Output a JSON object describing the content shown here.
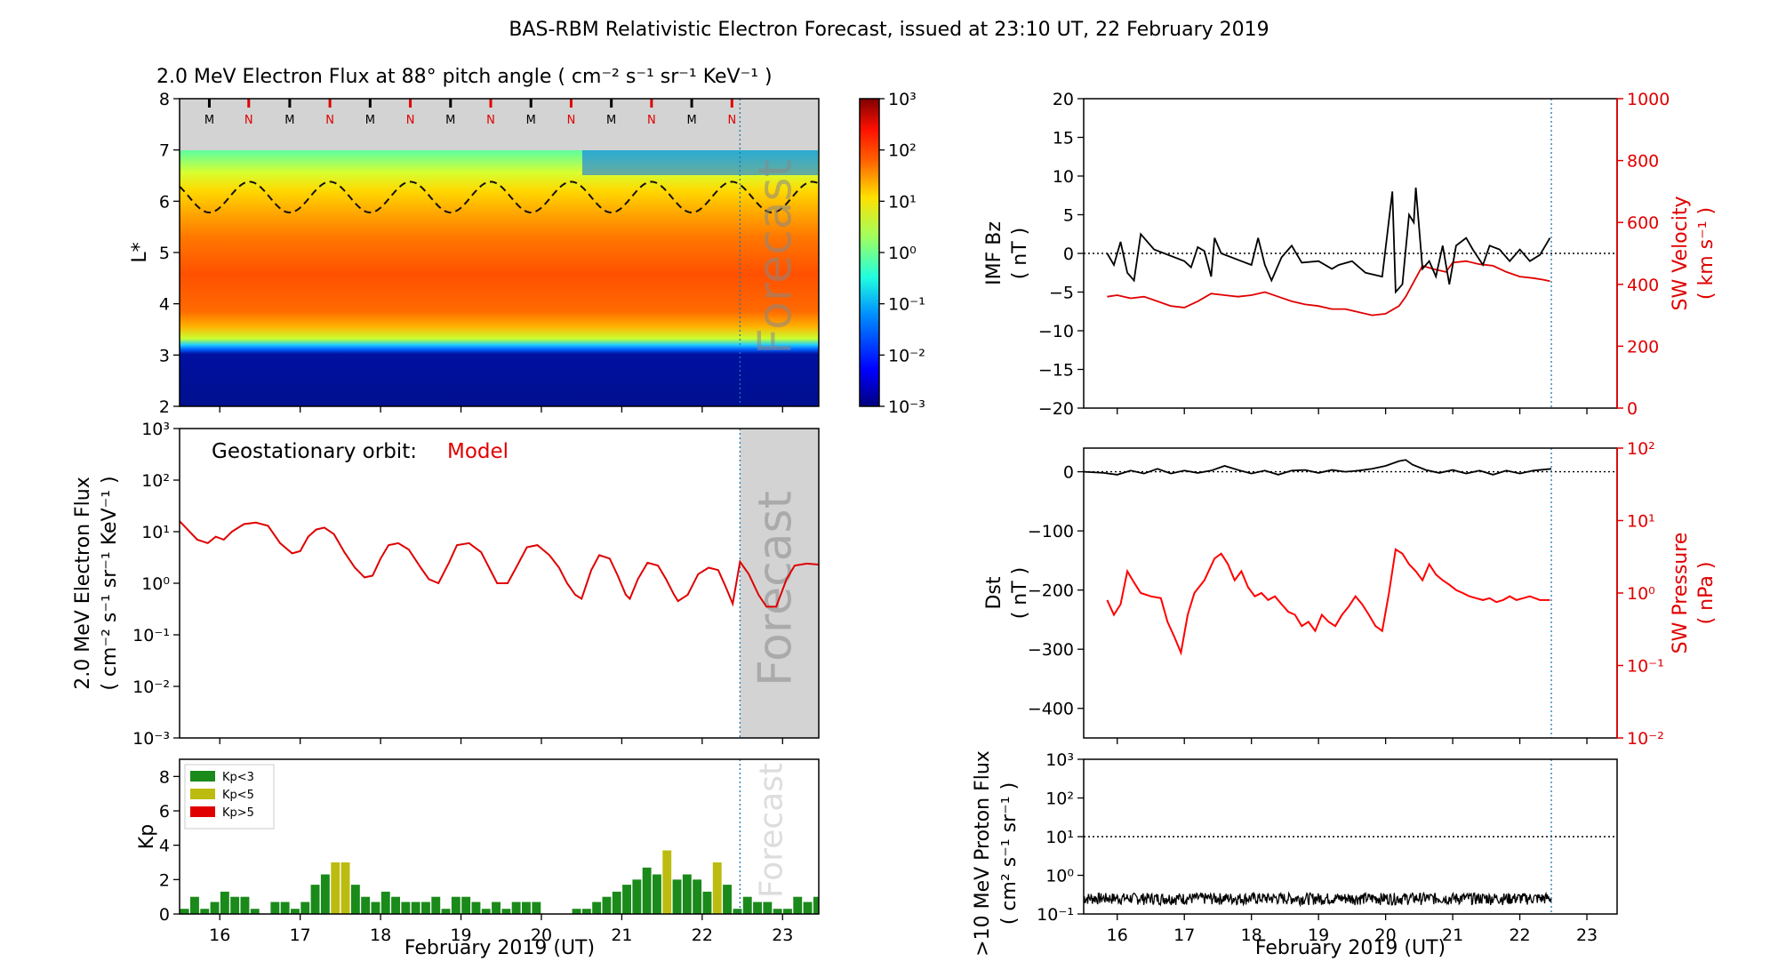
{
  "title": "BAS-RBM Relativistic Electron Forecast, issued at 23:10 UT, 22 February 2019",
  "xlabel": "February 2019 (UT)",
  "x_ticks": [
    "16",
    "17",
    "18",
    "19",
    "20",
    "21",
    "22",
    "23"
  ],
  "forecast_label": "Forecast",
  "colors": {
    "model": "#e00000",
    "bz": "#000000",
    "kp_low": "#1a8a1a",
    "kp_mid": "#bcbc10",
    "kp_high": "#e00000",
    "forecast_line": "#1f77b4",
    "forecast_shade": "#d3d3d3"
  },
  "chart_data": [
    {
      "id": "flux_map",
      "type": "heatmap",
      "title": "2.0 MeV Electron Flux at 88° pitch angle ( cm⁻² s⁻¹ sr⁻¹ KeV⁻¹ )",
      "ylabel": "L*",
      "xlim": [
        15.5,
        23.45
      ],
      "ylim": [
        2,
        8
      ],
      "y_ticks": [
        "2",
        "3",
        "4",
        "5",
        "6",
        "7",
        "8"
      ],
      "forecast_start": 22.47,
      "colorbar": {
        "min_exp": -3,
        "max_exp": 3,
        "tick_labels": [
          "10⁻³",
          "10⁻²",
          "10⁻¹",
          "10⁰",
          "10¹",
          "10²",
          "10³"
        ]
      },
      "magnetopause_markers": [
        {
          "x": 15.87,
          "label": "M"
        },
        {
          "x": 16.36,
          "label": "N"
        },
        {
          "x": 16.87,
          "label": "M"
        },
        {
          "x": 17.37,
          "label": "N"
        },
        {
          "x": 17.87,
          "label": "M"
        },
        {
          "x": 18.37,
          "label": "N"
        },
        {
          "x": 18.87,
          "label": "M"
        },
        {
          "x": 19.37,
          "label": "N"
        },
        {
          "x": 19.87,
          "label": "M"
        },
        {
          "x": 20.37,
          "label": "N"
        },
        {
          "x": 20.87,
          "label": "M"
        },
        {
          "x": 21.37,
          "label": "N"
        },
        {
          "x": 21.87,
          "label": "M"
        },
        {
          "x": 22.37,
          "label": "N"
        }
      ],
      "dashed_contour": {
        "mean_L": 6.08,
        "amplitude": 0.3,
        "period_days": 1.0,
        "peak_day": 16.37
      }
    },
    {
      "id": "geo_flux",
      "type": "line",
      "annotation": "Geostationary orbit:",
      "series_label": "Model",
      "ylabel": [
        "2.0 MeV Electron Flux",
        "( cm⁻² s⁻¹ sr⁻¹ KeV⁻¹ )"
      ],
      "xlim": [
        15.5,
        23.45
      ],
      "yscale": "log",
      "ylim_exp": [
        -3,
        3
      ],
      "y_ticks": [
        "10⁻³",
        "10⁻²",
        "10⁻¹",
        "10⁰",
        "10¹",
        "10²",
        "10³"
      ],
      "forecast_start": 22.47,
      "points": [
        [
          15.5,
          16
        ],
        [
          15.6,
          11
        ],
        [
          15.72,
          7
        ],
        [
          15.85,
          6
        ],
        [
          15.95,
          8
        ],
        [
          16.05,
          7
        ],
        [
          16.15,
          10
        ],
        [
          16.3,
          14
        ],
        [
          16.45,
          15
        ],
        [
          16.6,
          13
        ],
        [
          16.75,
          6
        ],
        [
          16.9,
          3.8
        ],
        [
          17.0,
          4.2
        ],
        [
          17.1,
          8
        ],
        [
          17.2,
          11
        ],
        [
          17.3,
          12
        ],
        [
          17.42,
          9
        ],
        [
          17.55,
          4
        ],
        [
          17.68,
          2.0
        ],
        [
          17.8,
          1.3
        ],
        [
          17.9,
          1.4
        ],
        [
          18.0,
          3
        ],
        [
          18.1,
          5.5
        ],
        [
          18.22,
          6
        ],
        [
          18.35,
          4.5
        ],
        [
          18.5,
          2.0
        ],
        [
          18.6,
          1.2
        ],
        [
          18.72,
          1.0
        ],
        [
          18.85,
          2.5
        ],
        [
          18.95,
          5.5
        ],
        [
          19.1,
          6
        ],
        [
          19.25,
          4.0
        ],
        [
          19.35,
          2.0
        ],
        [
          19.45,
          1.0
        ],
        [
          19.58,
          1.0
        ],
        [
          19.7,
          2.2
        ],
        [
          19.82,
          5
        ],
        [
          19.95,
          5.5
        ],
        [
          20.1,
          3.5
        ],
        [
          20.22,
          2.0
        ],
        [
          20.32,
          1.0
        ],
        [
          20.42,
          0.6
        ],
        [
          20.5,
          0.5
        ],
        [
          20.62,
          1.8
        ],
        [
          20.72,
          3.5
        ],
        [
          20.85,
          3.0
        ],
        [
          20.95,
          1.4
        ],
        [
          21.05,
          0.6
        ],
        [
          21.1,
          0.5
        ],
        [
          21.2,
          1.2
        ],
        [
          21.32,
          2.5
        ],
        [
          21.45,
          2.2
        ],
        [
          21.55,
          1.2
        ],
        [
          21.65,
          0.6
        ],
        [
          21.7,
          0.45
        ],
        [
          21.82,
          0.6
        ],
        [
          21.95,
          1.5
        ],
        [
          22.08,
          2.0
        ],
        [
          22.2,
          1.8
        ],
        [
          22.3,
          0.8
        ],
        [
          22.38,
          0.4
        ],
        [
          22.47,
          2.6
        ],
        [
          22.58,
          1.5
        ],
        [
          22.7,
          0.6
        ],
        [
          22.8,
          0.35
        ],
        [
          22.92,
          0.35
        ],
        [
          23.05,
          1.2
        ],
        [
          23.15,
          2.2
        ],
        [
          23.3,
          2.4
        ],
        [
          23.45,
          2.3
        ]
      ]
    },
    {
      "id": "kp",
      "type": "bar",
      "ylabel": "Kp",
      "xlim": [
        15.5,
        23.45
      ],
      "ylim": [
        0,
        9
      ],
      "y_ticks": [
        "0",
        "2",
        "4",
        "6",
        "8"
      ],
      "bar_width_days": 0.11,
      "forecast_start": 22.47,
      "legend": [
        "Kp<3",
        "Kp<5",
        "Kp>5"
      ],
      "values": [
        0.3,
        1.0,
        0.3,
        0.7,
        1.3,
        1.0,
        1.0,
        0.3,
        0.0,
        0.7,
        0.7,
        0.3,
        0.7,
        1.7,
        2.3,
        3.0,
        3.0,
        1.7,
        1.0,
        0.7,
        1.3,
        1.0,
        0.7,
        0.7,
        0.7,
        1.0,
        0.3,
        1.0,
        1.0,
        0.7,
        0.3,
        0.7,
        0.3,
        0.7,
        0.7,
        0.7,
        0.0,
        0.0,
        0.0,
        0.3,
        0.3,
        0.7,
        1.0,
        1.3,
        1.7,
        2.0,
        2.7,
        2.3,
        3.7,
        2.0,
        2.3,
        2.0,
        1.3,
        3.0,
        1.7,
        0.3,
        1.0,
        0.7,
        0.7,
        0.3,
        0.3,
        1.0,
        0.7,
        1.0,
        1.0,
        1.0,
        1.0,
        1.3,
        1.3,
        2.0,
        1.0,
        1.0
      ]
    },
    {
      "id": "imf_sw",
      "type": "line",
      "ylabel_left": [
        "IMF Bz",
        "( nT )"
      ],
      "ylabel_right": [
        "SW Velocity",
        "( km s⁻¹ )"
      ],
      "xlim": [
        15.5,
        23.45
      ],
      "ylim_left": [
        -20,
        20
      ],
      "ylim_right": [
        0,
        1000
      ],
      "y_ticks_left": [
        "−20",
        "−15",
        "−10",
        "−5",
        "0",
        "5",
        "10",
        "15",
        "20"
      ],
      "y_ticks_right": [
        "0",
        "200",
        "400",
        "600",
        "800",
        "1000"
      ],
      "data_end": 22.47,
      "bz_points": [
        [
          15.85,
          0
        ],
        [
          15.95,
          -1.5
        ],
        [
          16.05,
          1.5
        ],
        [
          16.15,
          -2.5
        ],
        [
          16.25,
          -3.5
        ],
        [
          16.35,
          2.5
        ],
        [
          16.45,
          1.5
        ],
        [
          16.55,
          0.5
        ],
        [
          17.0,
          -1
        ],
        [
          17.1,
          -1.8
        ],
        [
          17.2,
          0.8
        ],
        [
          17.3,
          0.3
        ],
        [
          17.4,
          -3
        ],
        [
          17.45,
          2
        ],
        [
          17.55,
          0
        ],
        [
          18.0,
          -1.5
        ],
        [
          18.1,
          2
        ],
        [
          18.2,
          -1.5
        ],
        [
          18.3,
          -3.5
        ],
        [
          18.45,
          -0.5
        ],
        [
          18.6,
          1
        ],
        [
          18.75,
          -1.2
        ],
        [
          19.0,
          -1.0
        ],
        [
          19.2,
          -2.0
        ],
        [
          19.3,
          -1.5
        ],
        [
          19.5,
          -1.0
        ],
        [
          19.7,
          -2.5
        ],
        [
          19.95,
          -3.0
        ],
        [
          20.1,
          8.0
        ],
        [
          20.15,
          -5
        ],
        [
          20.25,
          -4
        ],
        [
          20.35,
          5
        ],
        [
          20.42,
          4
        ],
        [
          20.45,
          8.5
        ],
        [
          20.55,
          -2
        ],
        [
          20.65,
          -1
        ],
        [
          20.75,
          -3
        ],
        [
          20.85,
          1
        ],
        [
          20.95,
          -4
        ],
        [
          21.05,
          1
        ],
        [
          21.2,
          2
        ],
        [
          21.3,
          0.5
        ],
        [
          21.45,
          -1.5
        ],
        [
          21.55,
          1
        ],
        [
          21.7,
          0.5
        ],
        [
          21.85,
          -1
        ],
        [
          22.0,
          0.5
        ],
        [
          22.15,
          -1
        ],
        [
          22.3,
          -0.2
        ],
        [
          22.45,
          2
        ]
      ],
      "velocity_points": [
        [
          15.85,
          360
        ],
        [
          16.0,
          365
        ],
        [
          16.2,
          355
        ],
        [
          16.4,
          360
        ],
        [
          16.6,
          345
        ],
        [
          16.8,
          330
        ],
        [
          17.0,
          325
        ],
        [
          17.2,
          345
        ],
        [
          17.4,
          370
        ],
        [
          17.6,
          365
        ],
        [
          17.8,
          360
        ],
        [
          18.0,
          365
        ],
        [
          18.2,
          375
        ],
        [
          18.4,
          360
        ],
        [
          18.6,
          345
        ],
        [
          18.8,
          335
        ],
        [
          19.0,
          330
        ],
        [
          19.2,
          320
        ],
        [
          19.4,
          320
        ],
        [
          19.6,
          310
        ],
        [
          19.8,
          300
        ],
        [
          20.0,
          305
        ],
        [
          20.2,
          330
        ],
        [
          20.3,
          360
        ],
        [
          20.4,
          400
        ],
        [
          20.55,
          460
        ],
        [
          20.7,
          450
        ],
        [
          20.9,
          440
        ],
        [
          21.0,
          470
        ],
        [
          21.2,
          475
        ],
        [
          21.4,
          465
        ],
        [
          21.6,
          460
        ],
        [
          21.8,
          440
        ],
        [
          22.0,
          425
        ],
        [
          22.2,
          420
        ],
        [
          22.35,
          415
        ],
        [
          22.45,
          410
        ]
      ]
    },
    {
      "id": "dst_swp",
      "type": "line",
      "ylabel_left": [
        "Dst",
        "( nT )"
      ],
      "ylabel_right": [
        "SW Pressure",
        "( nPa )"
      ],
      "xlim": [
        15.5,
        23.45
      ],
      "ylim_left": [
        -450,
        40
      ],
      "y_ticks_left": [
        "−400",
        "−300",
        "−200",
        "−100",
        "0"
      ],
      "y_ticks_left_values": [
        -400,
        -300,
        -200,
        -100,
        0
      ],
      "yscale_right": "log",
      "ylim_right_exp": [
        -2,
        2
      ],
      "y_ticks_right": [
        "10⁻²",
        "10⁻¹",
        "10⁰",
        "10¹",
        "10²"
      ],
      "data_end": 22.47,
      "dst_points": [
        [
          15.5,
          0
        ],
        [
          15.8,
          -2
        ],
        [
          16.0,
          -5
        ],
        [
          16.2,
          2
        ],
        [
          16.4,
          -3
        ],
        [
          16.6,
          5
        ],
        [
          16.8,
          -3
        ],
        [
          17.0,
          2
        ],
        [
          17.2,
          -2
        ],
        [
          17.4,
          2
        ],
        [
          17.6,
          10
        ],
        [
          17.8,
          3
        ],
        [
          18.0,
          -3
        ],
        [
          18.2,
          2
        ],
        [
          18.4,
          -5
        ],
        [
          18.6,
          2
        ],
        [
          18.8,
          3
        ],
        [
          19.0,
          -2
        ],
        [
          19.2,
          3
        ],
        [
          19.4,
          0
        ],
        [
          19.6,
          2
        ],
        [
          19.8,
          5
        ],
        [
          20.0,
          10
        ],
        [
          20.2,
          18
        ],
        [
          20.3,
          20
        ],
        [
          20.4,
          12
        ],
        [
          20.6,
          3
        ],
        [
          20.8,
          -2
        ],
        [
          21.0,
          3
        ],
        [
          21.2,
          -3
        ],
        [
          21.4,
          2
        ],
        [
          21.6,
          -5
        ],
        [
          21.8,
          2
        ],
        [
          22.0,
          -3
        ],
        [
          22.2,
          2
        ],
        [
          22.47,
          5
        ]
      ],
      "pressure_points": [
        [
          15.85,
          0.8
        ],
        [
          15.95,
          0.5
        ],
        [
          16.05,
          0.7
        ],
        [
          16.15,
          2
        ],
        [
          16.25,
          1.4
        ],
        [
          16.35,
          1.0
        ],
        [
          16.5,
          0.9
        ],
        [
          16.65,
          0.85
        ],
        [
          16.75,
          0.4
        ],
        [
          16.85,
          0.25
        ],
        [
          16.95,
          0.15
        ],
        [
          17.05,
          0.5
        ],
        [
          17.15,
          1.0
        ],
        [
          17.3,
          1.5
        ],
        [
          17.45,
          3.0
        ],
        [
          17.55,
          3.5
        ],
        [
          17.65,
          2.5
        ],
        [
          17.75,
          1.5
        ],
        [
          17.85,
          2
        ],
        [
          17.95,
          1.2
        ],
        [
          18.05,
          0.9
        ],
        [
          18.15,
          1.0
        ],
        [
          18.25,
          0.8
        ],
        [
          18.35,
          0.9
        ],
        [
          18.45,
          0.7
        ],
        [
          18.55,
          0.55
        ],
        [
          18.65,
          0.5
        ],
        [
          18.75,
          0.35
        ],
        [
          18.85,
          0.4
        ],
        [
          18.95,
          0.3
        ],
        [
          19.05,
          0.5
        ],
        [
          19.15,
          0.4
        ],
        [
          19.25,
          0.35
        ],
        [
          19.35,
          0.5
        ],
        [
          19.45,
          0.65
        ],
        [
          19.55,
          0.9
        ],
        [
          19.65,
          0.7
        ],
        [
          19.75,
          0.5
        ],
        [
          19.85,
          0.35
        ],
        [
          19.95,
          0.3
        ],
        [
          20.05,
          1.0
        ],
        [
          20.15,
          4.0
        ],
        [
          20.25,
          3.5
        ],
        [
          20.35,
          2.5
        ],
        [
          20.45,
          2.0
        ],
        [
          20.55,
          1.5
        ],
        [
          20.65,
          2.5
        ],
        [
          20.75,
          1.8
        ],
        [
          20.85,
          1.5
        ],
        [
          20.95,
          1.3
        ],
        [
          21.05,
          1.1
        ],
        [
          21.15,
          1.0
        ],
        [
          21.25,
          0.9
        ],
        [
          21.35,
          0.85
        ],
        [
          21.45,
          0.8
        ],
        [
          21.55,
          0.85
        ],
        [
          21.65,
          0.75
        ],
        [
          21.75,
          0.8
        ],
        [
          21.85,
          0.9
        ],
        [
          21.95,
          0.8
        ],
        [
          22.05,
          0.85
        ],
        [
          22.15,
          0.9
        ],
        [
          22.3,
          0.8
        ],
        [
          22.45,
          0.8
        ]
      ]
    },
    {
      "id": "proton_flux",
      "type": "line",
      "ylabel": [
        ">10 MeV Proton Flux",
        "( cm² s⁻¹ sr⁻¹ )"
      ],
      "xlim": [
        15.5,
        23.45
      ],
      "yscale": "log",
      "ylim_exp": [
        -1,
        3
      ],
      "y_ticks": [
        "10⁻¹",
        "10⁰",
        "10¹",
        "10²",
        "10³"
      ],
      "threshold": 10,
      "data_start": 15.5,
      "data_end": 22.47,
      "baseline_mean": 0.2
    }
  ]
}
